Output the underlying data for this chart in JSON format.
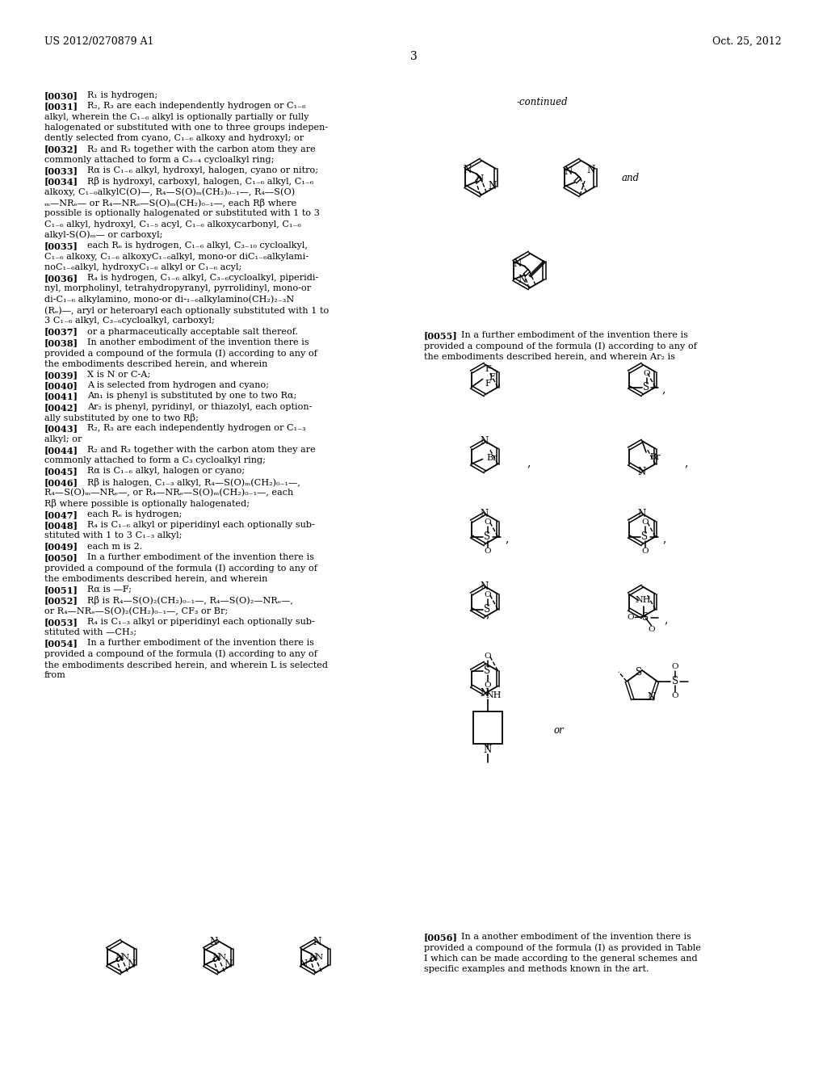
{
  "bg": "#ffffff",
  "header_left": "US 2012/0270879 A1",
  "header_right": "Oct. 25, 2012",
  "page_num": "3"
}
